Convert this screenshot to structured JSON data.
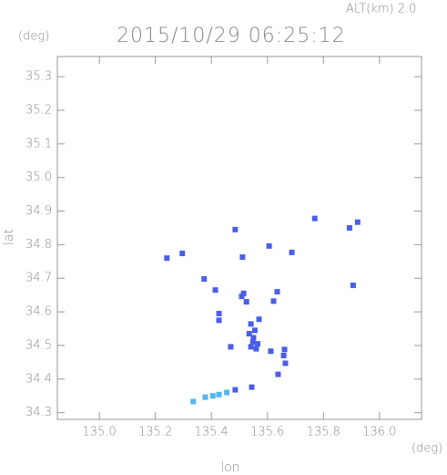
{
  "chart_data": {
    "type": "scatter",
    "title": "2015/10/29 06:25:12",
    "subtitle": "ALT(km) 2.0",
    "x_label": "lon",
    "y_label": "lat",
    "x_unit": "(deg)",
    "y_unit": "(deg)",
    "xlim": [
      134.85,
      136.15
    ],
    "ylim": [
      34.28,
      35.36
    ],
    "xticks": [
      {
        "value": 135.0,
        "label": "135.0"
      },
      135.2,
      135.4,
      135.6,
      135.8,
      {
        "value": 136.0,
        "label": "136.0"
      }
    ],
    "yticks": [
      34.3,
      34.4,
      34.5,
      34.6,
      34.7,
      34.8,
      34.9,
      {
        "value": 35.0,
        "label": "35.0"
      },
      35.1,
      35.2,
      35.3
    ],
    "series": [
      {
        "color": "#4a5ee8",
        "x": [
          135.241,
          135.296,
          135.374,
          135.414,
          135.427,
          135.427,
          135.469,
          135.511,
          135.508,
          135.515,
          135.525,
          135.541,
          135.55,
          135.541,
          135.56,
          135.57,
          135.555,
          135.548,
          135.606,
          135.622,
          135.635,
          135.612,
          135.638,
          135.661,
          135.664,
          135.658,
          135.544,
          135.485,
          135.769,
          135.893,
          135.922,
          135.906,
          135.485,
          135.687,
          135.535,
          135.565
        ],
        "values": [
          34.76,
          34.774,
          34.698,
          34.665,
          34.595,
          34.575,
          34.496,
          34.763,
          34.646,
          34.655,
          34.63,
          34.564,
          34.523,
          34.496,
          34.49,
          34.578,
          34.545,
          34.51,
          34.796,
          34.632,
          34.66,
          34.483,
          34.414,
          34.488,
          34.447,
          34.47,
          34.376,
          34.368,
          34.878,
          34.85,
          34.867,
          34.679,
          34.845,
          34.777,
          34.535,
          34.505
        ]
      },
      {
        "color": "#55b4ee",
        "x": [
          135.427,
          135.405,
          135.378,
          135.335,
          135.455
        ],
        "values": [
          34.354,
          34.35,
          34.346,
          34.333,
          34.36
        ]
      }
    ]
  }
}
